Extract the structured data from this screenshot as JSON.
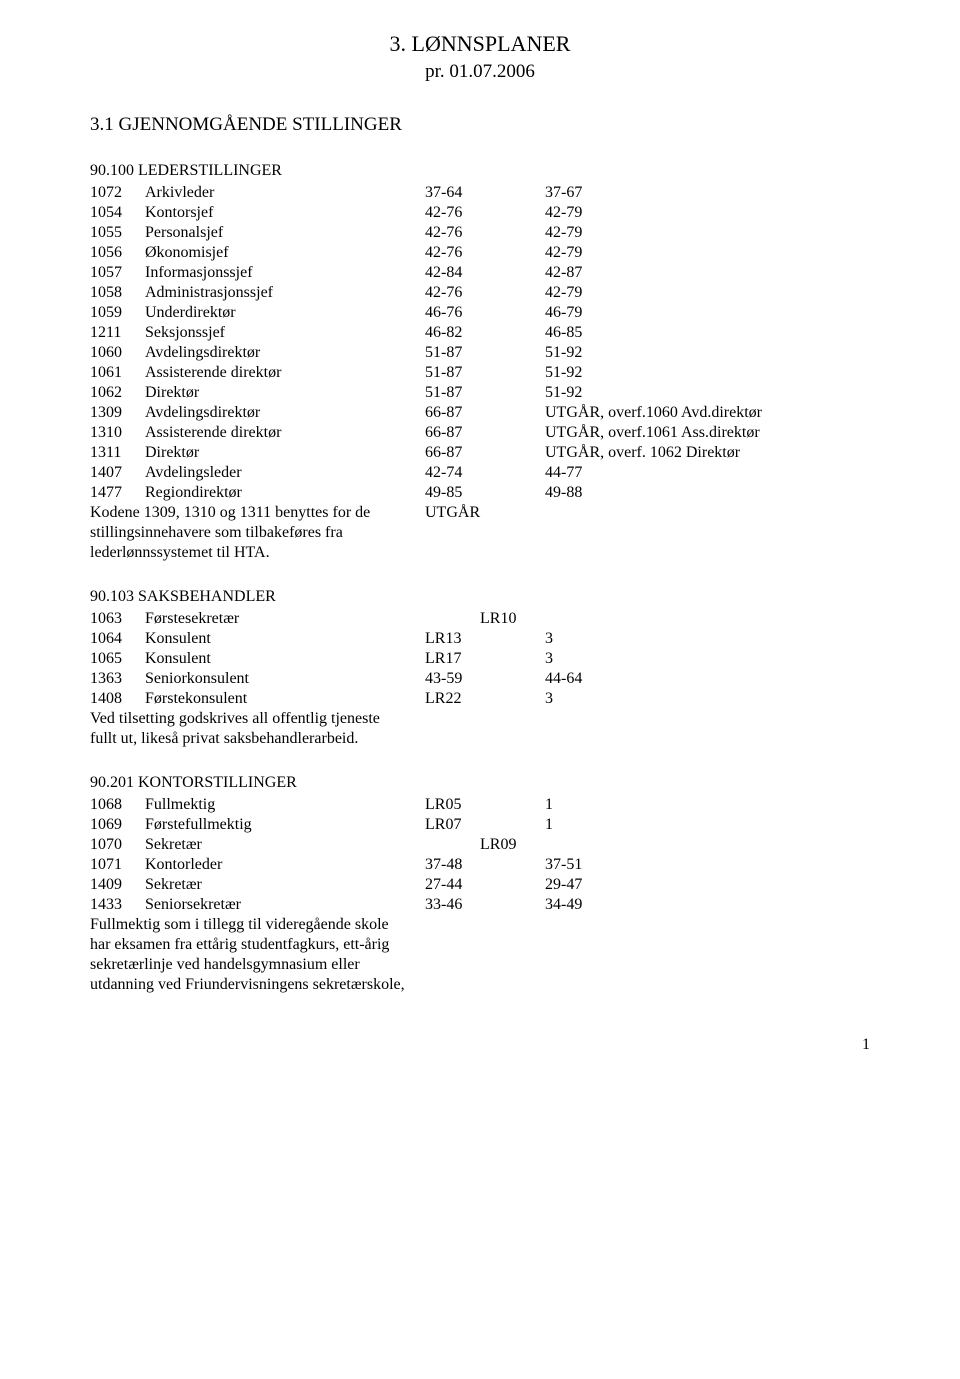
{
  "title": "3. LØNNSPLANER",
  "subtitle": "pr. 01.07.2006",
  "section1_heading": "3.1    GJENNOMGÅENDE STILLINGER",
  "s100": {
    "heading": "90.100 LEDERSTILLINGER",
    "rows": [
      {
        "code": "1072",
        "title": "Arkivleder",
        "v1": "37-64",
        "v2": "37-67"
      },
      {
        "code": "1054",
        "title": "Kontorsjef",
        "v1": "42-76",
        "v2": "42-79"
      },
      {
        "code": "1055",
        "title": "Personalsjef",
        "v1": "42-76",
        "v2": "42-79"
      },
      {
        "code": "1056",
        "title": "Økonomisjef",
        "v1": "42-76",
        "v2": "42-79"
      },
      {
        "code": "1057",
        "title": "Informasjonssjef",
        "v1": "42-84",
        "v2": "42-87"
      },
      {
        "code": "1058",
        "title": "Administrasjonssjef",
        "v1": "42-76",
        "v2": "42-79"
      },
      {
        "code": "1059",
        "title": "Underdirektør",
        "v1": "46-76",
        "v2": "46-79"
      },
      {
        "code": "1211",
        "title": "Seksjonssjef",
        "v1": "46-82",
        "v2": "46-85"
      },
      {
        "code": "1060",
        "title": "Avdelingsdirektør",
        "v1": "51-87",
        "v2": "51-92"
      },
      {
        "code": "1061",
        "title": "Assisterende direktør",
        "v1": "51-87",
        "v2": "51-92"
      },
      {
        "code": "1062",
        "title": "Direktør",
        "v1": "51-87",
        "v2": "51-92"
      },
      {
        "code": "1309",
        "title": "Avdelingsdirektør",
        "v1": "66-87",
        "v2": "UTGÅR, overf.1060 Avd.direktør"
      },
      {
        "code": "1310",
        "title": "Assisterende direktør",
        "v1": "66-87",
        "v2": "UTGÅR, overf.1061 Ass.direktør"
      },
      {
        "code": "1311",
        "title": "Direktør",
        "v1": "66-87",
        "v2": "UTGÅR, overf. 1062 Direktør"
      },
      {
        "code": "1407",
        "title": "Avdelingsleder",
        "v1": "42-74",
        "v2": "44-77"
      },
      {
        "code": "1477",
        "title": "Regiondirektør",
        "v1": "49-85",
        "v2": "49-88"
      }
    ],
    "note_l1": "Kodene 1309, 1310 og 1311 benyttes for de",
    "note_l2": "stillingsinnehavere som tilbakeføres fra",
    "note_l3": "lederlønnssystemet til HTA.",
    "note_right": "UTGÅR"
  },
  "s103": {
    "heading": "90.103 SAKSBEHANDLER",
    "rows": [
      {
        "code": "1063",
        "title": "Førstesekretær",
        "v1": "LR10",
        "v2": ""
      },
      {
        "code": "1064",
        "title": "Konsulent",
        "v1": "LR13",
        "mid": "3",
        "v2": ""
      },
      {
        "code": "1065",
        "title": "Konsulent",
        "v1": "LR17",
        "mid": "3",
        "v2": ""
      },
      {
        "code": "1363",
        "title": "Seniorkonsulent",
        "v1": "43-59",
        "v2": "44-64"
      },
      {
        "code": "1408",
        "title": "Førstekonsulent",
        "v1": "LR22",
        "mid": "3",
        "v2": ""
      }
    ],
    "note_l1": "Ved tilsetting godskrives all offentlig tjeneste",
    "note_l2": "fullt ut, likeså privat saksbehandlerarbeid."
  },
  "s201": {
    "heading": "90.201 KONTORSTILLINGER",
    "rows": [
      {
        "code": "1068",
        "title": "Fullmektig",
        "v1": "LR05",
        "mid": "1",
        "v2": ""
      },
      {
        "code": "1069",
        "title": "Førstefullmektig",
        "v1": "LR07",
        "mid": "1",
        "v2": ""
      },
      {
        "code": "1070",
        "title": "Sekretær",
        "v1": "LR09",
        "v2": ""
      },
      {
        "code": "1071",
        "title": "Kontorleder",
        "v1": "37-48",
        "v2": "37-51"
      },
      {
        "code": "1409",
        "title": "Sekretær",
        "v1": "27-44",
        "v2": "29-47"
      },
      {
        "code": "1433",
        "title": "Seniorsekretær",
        "v1": "33-46",
        "v2": "34-49"
      }
    ],
    "note_l1": "Fullmektig som i tillegg til videregående skole",
    "note_l2": "har eksamen fra ettårig studentfagkurs, ett-årig",
    "note_l3": "sekretærlinje ved handelsgymnasium eller",
    "note_l4": "utdanning ved Friundervisningens sekretærskole,"
  },
  "page_num": "1"
}
